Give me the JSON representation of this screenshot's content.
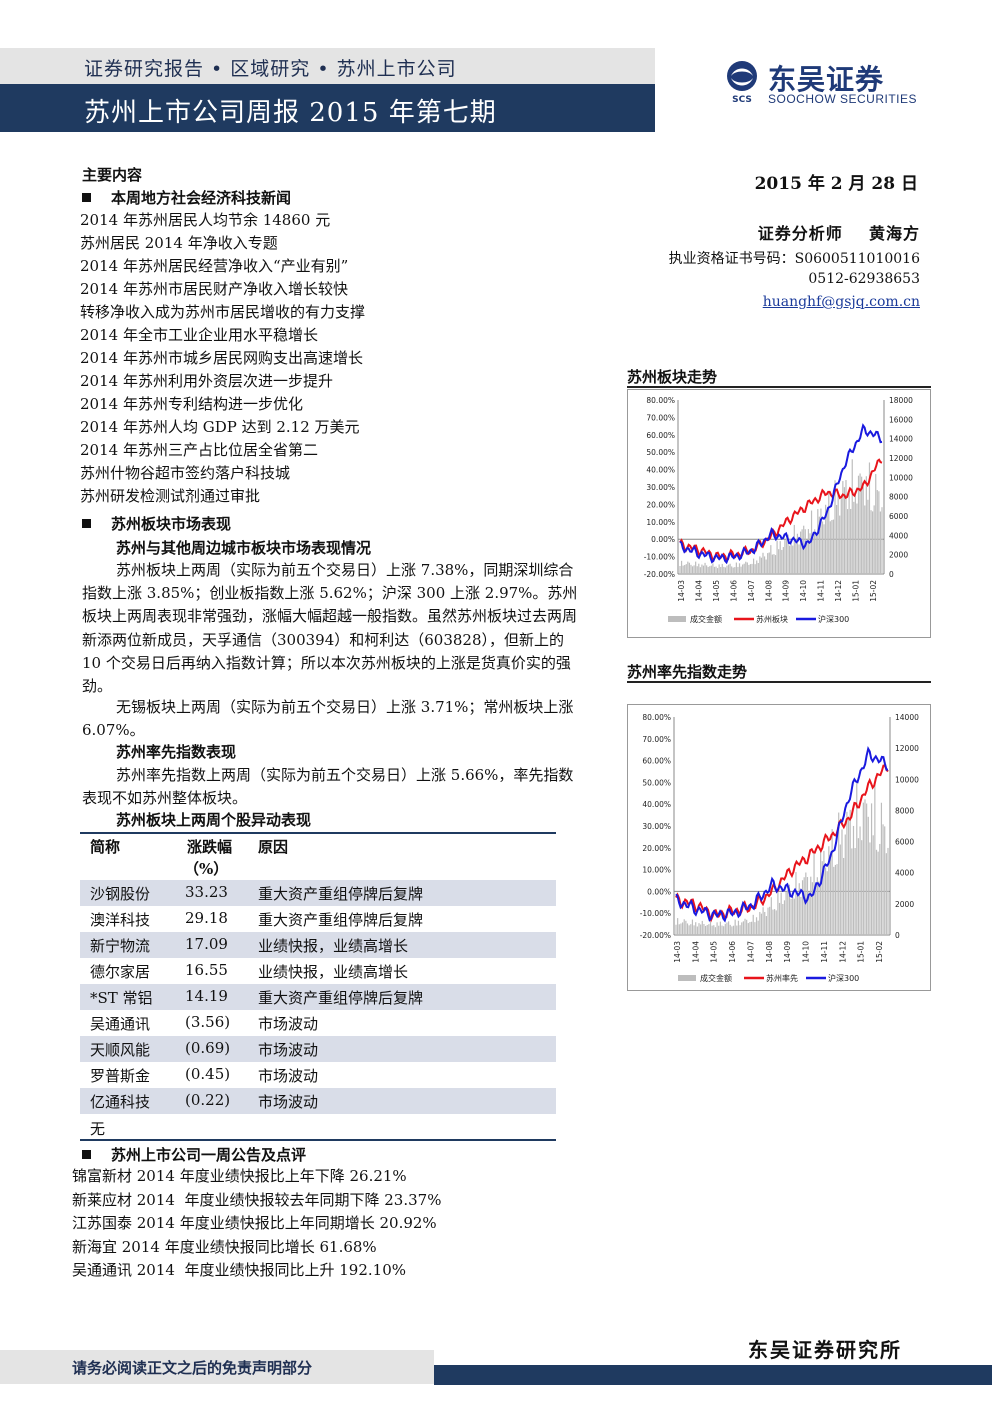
{
  "header": {
    "breadcrumb": "证券研究报告 • 区域研究 • 苏州上市公司",
    "title": "苏州上市公司周报 2015 年第七期",
    "logo_cn": "东吴证券",
    "logo_en": "SOOCHOW SECURITIES",
    "logo_mark_text": "SCS"
  },
  "meta": {
    "date": "2015 年 2 月 28 日",
    "analyst": "证券分析师    黄海方",
    "license": "执业资格证书号码：S0600511010016",
    "phone": "0512-62938653",
    "email": "huanghf@gsjq.com.cn"
  },
  "main": {
    "heading": "主要内容",
    "sec1": "本周地方社会经济科技新闻",
    "news": [
      "2014 年苏州居民人均节余 14860 元",
      "苏州居民 2014 年净收入专题",
      "2014 年苏州居民经营净收入“产业有别”",
      "2014 年苏州市居民财产净收入增长较快",
      "转移净收入成为苏州市居民增收的有力支撑",
      "2014 年全市工业企业用水平稳增长",
      "2014 年苏州市城乡居民网购支出高速增长",
      "2014 年苏州利用外资层次进一步提升",
      "2014 年苏州专利结构进一步优化",
      "2014 年苏州人均 GDP 达到 2.12 万美元",
      "2014 年苏州三产占比位居全省第二",
      "苏州什物谷超市签约落户科技城",
      "苏州研发检测试剂通过审批"
    ],
    "sec2": "苏州板块市场表现",
    "sub1": "苏州与其他周边城市板块市场表现情况",
    "p1": "苏州板块上两周（实际为前五个交易日）上涨 7.38%，同期深圳综合指数上涨 3.85%；创业板指数上涨 5.62%；沪深 300 上涨 2.97%。苏州板块上两周表现非常强劲，涨幅大幅超越一般指数。虽然苏州板块过去两周新添两位新成员，天孚通信（300394）和柯利达（603828），但新上的 10 个交易日后再纳入指数计算；所以本次苏州板块的上涨是货真价实的强劲。",
    "p2": "无锡板块上两周（实际为前五个交易日）上涨 3.71%；常州板块上涨 6.07%。",
    "sub2": "苏州率先指数表现",
    "p3": "苏州率先指数上两周（实际为前五个交易日）上涨 5.66%，率先指数表现不如苏州整体板块。",
    "sub3": "苏州板块上两周个股异动表现",
    "table": {
      "headers": [
        "简称",
        "涨跌幅",
        "（%）",
        "原因"
      ],
      "rows": [
        [
          "沙钢股份",
          "33.23",
          "重大资产重组停牌后复牌"
        ],
        [
          "澳洋科技",
          "29.18",
          "重大资产重组停牌后复牌"
        ],
        [
          "新宁物流",
          "17.09",
          "业绩快报，业绩高增长"
        ],
        [
          "德尔家居",
          "16.55",
          "业绩快报，业绩高增长"
        ],
        [
          "*ST 常铝",
          "14.19",
          "重大资产重组停牌后复牌"
        ],
        [
          "吴通通讯",
          "(3.56)",
          "市场波动"
        ],
        [
          "天顺风能",
          "(0.69)",
          "市场波动"
        ],
        [
          "罗普斯金",
          "(0.45)",
          "市场波动"
        ],
        [
          "亿通科技",
          "(0.22)",
          "市场波动"
        ]
      ],
      "note": "无"
    },
    "sec3": "苏州上市公司一周公告及点评",
    "announcements": [
      "锦富新材 2014 年度业绩快报比上年下降 26.21%",
      "新莱应材 2014  年度业绩快报较去年同期下降 23.37%",
      "江苏国泰 2014 年度业绩快报比上年同期增长 20.92%",
      "新海宜 2014 年度业绩快报同比增长 61.68%",
      "吴通通讯 2014  年度业绩快报同比上升 192.10%"
    ]
  },
  "chart_titles": [
    "苏州板块走势",
    "苏州率先指数走势"
  ],
  "chart_data": [
    {
      "type": "line",
      "title": "",
      "x": [
        "14-03",
        "14-04",
        "14-05",
        "14-06",
        "14-07",
        "14-08",
        "14-09",
        "14-10",
        "14-11",
        "14-12",
        "15-01",
        "15-02"
      ],
      "y_left_ticks": [
        "80.00%",
        "70.00%",
        "60.00%",
        "50.00%",
        "40.00%",
        "30.00%",
        "20.00%",
        "10.00%",
        "0.00%",
        "-10.00%",
        "-20.00%"
      ],
      "y_right_ticks": [
        "18000",
        "16000",
        "14000",
        "12000",
        "10000",
        "8000",
        "6000",
        "4000",
        "2000",
        "0"
      ],
      "ylim_left": [
        -20,
        80
      ],
      "ylim_right": [
        0,
        18000
      ],
      "legend": [
        "成交金额",
        "苏州板块",
        "沪深300"
      ],
      "legend_position": "bottom",
      "colors": {
        "volume": "#bdbdbd",
        "suzhou": "#e8141b",
        "hs300": "#1a1adf"
      },
      "series": [
        {
          "name": "苏州板块",
          "axis": "left",
          "values": [
            -3,
            -6,
            -10,
            -9,
            -6,
            2,
            12,
            20,
            27,
            25,
            30,
            47
          ]
        },
        {
          "name": "沪深300",
          "axis": "left",
          "values": [
            -4,
            -8,
            -11,
            -10,
            -6,
            3,
            0,
            -3,
            15,
            44,
            63,
            58
          ]
        },
        {
          "name": "成交金额",
          "axis": "right",
          "values": [
            1500,
            1300,
            1100,
            1200,
            1600,
            3200,
            4800,
            6200,
            8800,
            11500,
            12500,
            10500
          ]
        }
      ]
    },
    {
      "type": "line",
      "title": "",
      "x": [
        "14-03",
        "14-04",
        "14-05",
        "14-06",
        "14-07",
        "14-08",
        "14-09",
        "14-10",
        "14-11",
        "14-12",
        "15-01",
        "15-02"
      ],
      "y_left_ticks": [
        "80.00%",
        "70.00%",
        "60.00%",
        "50.00%",
        "40.00%",
        "30.00%",
        "20.00%",
        "10.00%",
        "0.00%",
        "-10.00%",
        "-20.00%"
      ],
      "y_right_ticks": [
        "14000",
        "12000",
        "10000",
        "8000",
        "6000",
        "4000",
        "2000",
        "0"
      ],
      "ylim_left": [
        -20,
        80
      ],
      "ylim_right": [
        0,
        14000
      ],
      "legend": [
        "成交金额",
        "苏州率先",
        "沪深300"
      ],
      "legend_position": "bottom",
      "colors": {
        "volume": "#bdbdbd",
        "suzhou": "#e8141b",
        "hs300": "#1a1adf"
      },
      "series": [
        {
          "name": "苏州率先",
          "axis": "left",
          "values": [
            -4,
            -6,
            -11,
            -9,
            -7,
            0,
            10,
            17,
            25,
            34,
            48,
            58
          ]
        },
        {
          "name": "沪深300",
          "axis": "left",
          "values": [
            -4,
            -8,
            -11,
            -10,
            -6,
            3,
            0,
            -3,
            15,
            44,
            63,
            58
          ]
        },
        {
          "name": "成交金额",
          "axis": "right",
          "values": [
            1200,
            1000,
            900,
            1000,
            1300,
            2600,
            3800,
            5000,
            7000,
            9500,
            10500,
            8500
          ]
        }
      ]
    }
  ]
}
